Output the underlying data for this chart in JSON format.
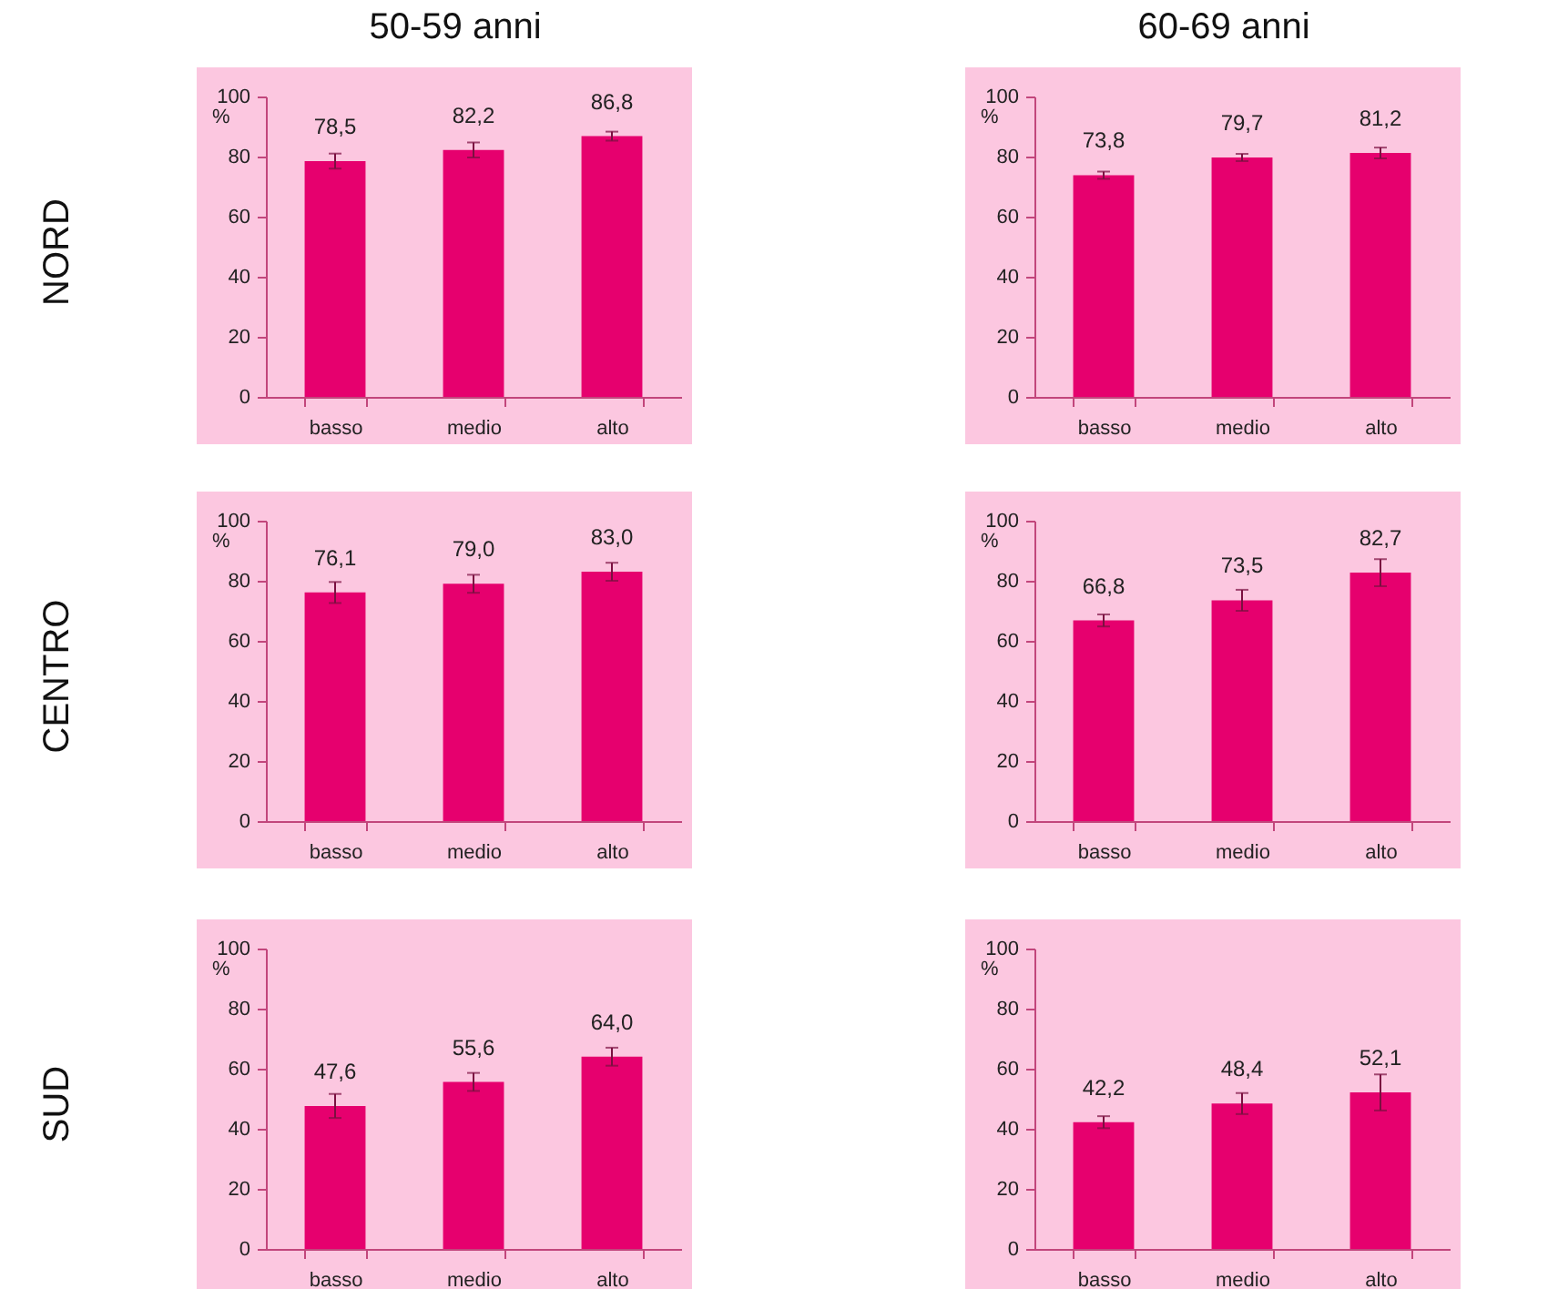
{
  "chart_data": [
    {
      "type": "bar",
      "title": "50-59 anni",
      "annotations": [
        "NORD"
      ],
      "ylabel": "%",
      "categories": [
        "basso",
        "medio",
        "alto"
      ],
      "values": [
        78.5,
        82.2,
        86.8
      ],
      "errors": [
        2.5,
        2.5,
        1.5
      ],
      "value_labels": [
        "78,5",
        "82,2",
        "86,8"
      ],
      "color": "#e6006e",
      "ylim": [
        0,
        100
      ],
      "yticks": [
        0,
        20,
        40,
        60,
        80,
        100
      ]
    },
    {
      "type": "bar",
      "title": "60-69 anni",
      "ylabel": "%",
      "categories": [
        "basso",
        "medio",
        "alto"
      ],
      "values": [
        73.8,
        79.7,
        81.2
      ],
      "errors": [
        1.2,
        1.2,
        1.8
      ],
      "value_labels": [
        "73,8",
        "79,7",
        "81,2"
      ],
      "color": "#e6006e",
      "ylim": [
        0,
        100
      ],
      "yticks": [
        0,
        20,
        40,
        60,
        80,
        100
      ]
    },
    {
      "type": "bar",
      "annotations": [
        "CENTRO"
      ],
      "ylabel": "%",
      "categories": [
        "basso",
        "medio",
        "alto"
      ],
      "values": [
        76.1,
        79.0,
        83.0
      ],
      "errors": [
        3.5,
        3,
        3
      ],
      "value_labels": [
        "76,1",
        "79,0",
        "83,0"
      ],
      "color": "#e6006e",
      "ylim": [
        0,
        100
      ],
      "yticks": [
        0,
        20,
        40,
        60,
        80,
        100
      ]
    },
    {
      "type": "bar",
      "ylabel": "%",
      "categories": [
        "basso",
        "medio",
        "alto"
      ],
      "values": [
        66.8,
        73.5,
        82.7
      ],
      "errors": [
        2,
        3.5,
        4.5
      ],
      "value_labels": [
        "66,8",
        "73,5",
        "82,7"
      ],
      "color": "#e6006e",
      "ylim": [
        0,
        100
      ],
      "yticks": [
        0,
        20,
        40,
        60,
        80,
        100
      ]
    },
    {
      "type": "bar",
      "annotations": [
        "SUD"
      ],
      "ylabel": "%",
      "categories": [
        "basso",
        "medio",
        "alto"
      ],
      "values": [
        47.6,
        55.6,
        64.0
      ],
      "errors": [
        4,
        3,
        3
      ],
      "value_labels": [
        "47,6",
        "55,6",
        "64,0"
      ],
      "color": "#e6006e",
      "ylim": [
        0,
        100
      ],
      "yticks": [
        0,
        20,
        40,
        60,
        80,
        100
      ]
    },
    {
      "type": "bar",
      "ylabel": "%",
      "categories": [
        "basso",
        "medio",
        "alto"
      ],
      "values": [
        42.2,
        48.4,
        52.1
      ],
      "errors": [
        2,
        3.5,
        6
      ],
      "value_labels": [
        "42,2",
        "48,4",
        "52,1"
      ],
      "color": "#e6006e",
      "ylim": [
        0,
        100
      ],
      "yticks": [
        0,
        20,
        40,
        60,
        80,
        100
      ]
    }
  ]
}
